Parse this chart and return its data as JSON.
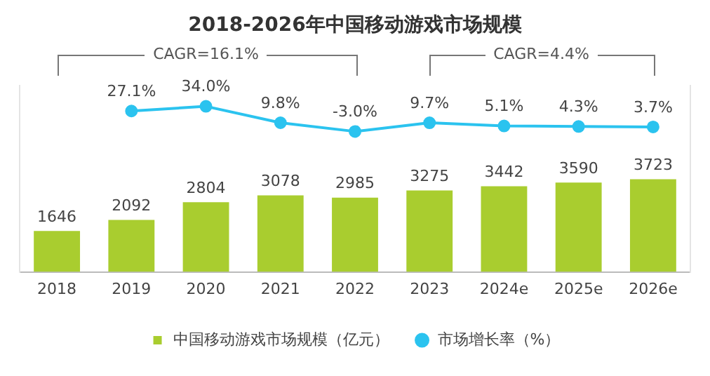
{
  "chart_data": {
    "type": "bar",
    "title": "2018-2026年中国移动游戏市场规模",
    "categories": [
      "2018",
      "2019",
      "2020",
      "2021",
      "2022",
      "2023",
      "2024e",
      "2025e",
      "2026e"
    ],
    "series": [
      {
        "name": "中国移动游戏市场规模（亿元）",
        "color": "#a9cd2f",
        "values": [
          1646,
          2092,
          2804,
          3078,
          2985,
          3275,
          3442,
          3590,
          3723
        ]
      },
      {
        "name": "市场增长率（%）",
        "type": "line",
        "axis": "y2",
        "color": "#2bc3ef",
        "marker": "circle",
        "values": [
          null,
          27.1,
          34.0,
          9.8,
          -3.0,
          9.7,
          5.1,
          4.3,
          3.7
        ],
        "value_labels": [
          null,
          "27.1%",
          "34.0%",
          "9.8%",
          "-3.0%",
          "9.7%",
          "5.1%",
          "4.3%",
          "3.7%"
        ]
      }
    ],
    "ylim": [
      0,
      7500
    ],
    "y2lim": [
      -210,
      65
    ],
    "data_labels": true,
    "tick_labels": "x",
    "grid": false,
    "legend": "bottom",
    "annotations": [
      "CAGR=16.1%",
      "CAGR=4.4%"
    ]
  }
}
